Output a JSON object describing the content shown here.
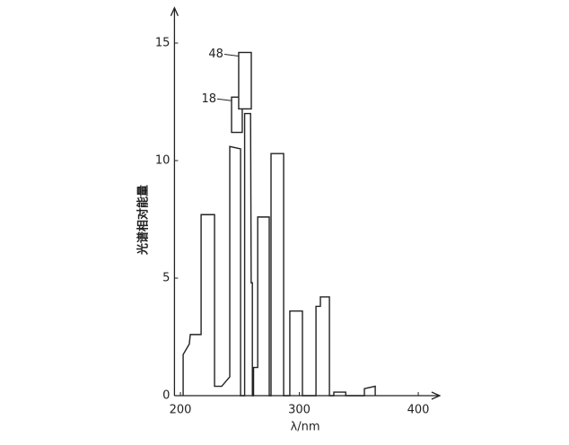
{
  "chart_data": {
    "type": "line",
    "x_label": "λ/nm",
    "y_label": "光谱相对能量",
    "xlim": [
      195,
      418
    ],
    "ylim": [
      0,
      16.5
    ],
    "xticks": [
      200,
      300,
      400
    ],
    "yticks": [
      0,
      5,
      10,
      15
    ],
    "color": "#222222",
    "series": [
      {
        "name": null,
        "x": [
          202.3,
          202.3,
          207.5,
          208.3,
          217.4,
          217.4,
          228.7,
          228.7,
          234.7,
          241.5,
          241.5,
          250.6,
          250.6,
          254,
          254,
          259,
          259.5,
          260.5,
          260.5,
          261.5,
          261.5,
          265,
          265,
          274.7,
          274.7,
          276.2,
          276.2,
          286.8,
          286.8,
          292,
          292,
          302.6,
          302.6,
          314,
          314,
          317.7,
          317.7,
          325.3,
          325.3,
          329,
          329,
          339,
          339,
          354.7,
          354.7,
          363.8,
          363.8
        ],
        "values": [
          0,
          1.75,
          2.2,
          2.6,
          2.6,
          7.7,
          7.7,
          0.4,
          0.4,
          0.8,
          10.6,
          10.5,
          0,
          0,
          12,
          12,
          4.8,
          4.8,
          0,
          0,
          1.2,
          1.2,
          7.6,
          7.6,
          0,
          0,
          10.3,
          10.3,
          0,
          0,
          3.6,
          3.6,
          0,
          0,
          3.8,
          3.8,
          4.2,
          4.2,
          0,
          0,
          0.15,
          0.15,
          0,
          0,
          0.3,
          0.4,
          0
        ]
      }
    ],
    "broken_bars": [
      {
        "label": "18",
        "x": [
          243,
          252
        ],
        "y": [
          11.2,
          12.7
        ]
      },
      {
        "label": "48",
        "x": [
          249,
          259.6
        ],
        "y": [
          12.2,
          14.6
        ]
      }
    ]
  }
}
